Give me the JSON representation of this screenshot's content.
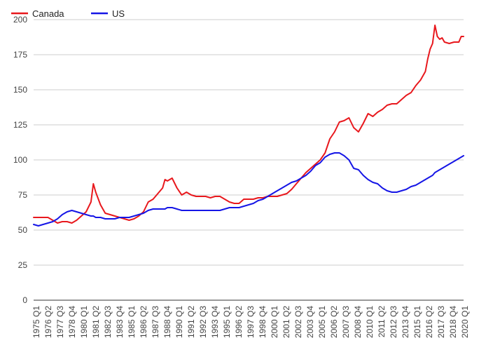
{
  "chart_data": {
    "type": "line",
    "title": "",
    "xlabel": "",
    "ylabel": "",
    "ylim": [
      0,
      200
    ],
    "yticks": [
      0,
      25,
      50,
      75,
      100,
      125,
      150,
      175,
      200
    ],
    "grid": "horizontal",
    "legend_position": "top-left",
    "x_tick_labels": [
      "1975 Q1",
      "1976 Q2",
      "1977 Q3",
      "1978 Q4",
      "1980 Q1",
      "1981 Q2",
      "1982 Q3",
      "1983 Q4",
      "1985 Q1",
      "1986 Q2",
      "1987 Q3",
      "1988 Q4",
      "1990 Q1",
      "1991 Q2",
      "1992 Q3",
      "1993 Q4",
      "1995 Q1",
      "1996 Q2",
      "1997 Q3",
      "1998 Q4",
      "2000 Q1",
      "2001 Q2",
      "2002 Q3",
      "2003 Q4",
      "2005 Q1",
      "2006 Q2",
      "2007 Q3",
      "2008 Q4",
      "2010 Q1",
      "2011 Q2",
      "2012 Q3",
      "2013 Q4",
      "2015 Q1",
      "2016 Q2",
      "2017 Q3",
      "2018 Q4",
      "2020 Q1"
    ],
    "x": [
      1975.0,
      1975.5,
      1976.0,
      1976.5,
      1977.0,
      1977.5,
      1978.0,
      1978.5,
      1979.0,
      1979.5,
      1980.0,
      1980.5,
      1981.0,
      1981.25,
      1981.5,
      1982.0,
      1982.5,
      1983.0,
      1983.5,
      1984.0,
      1984.5,
      1985.0,
      1985.5,
      1986.0,
      1986.5,
      1987.0,
      1987.5,
      1988.0,
      1988.5,
      1988.75,
      1989.0,
      1989.5,
      1990.0,
      1990.5,
      1991.0,
      1991.5,
      1992.0,
      1992.5,
      1993.0,
      1993.5,
      1994.0,
      1994.5,
      1995.0,
      1995.5,
      1996.0,
      1996.5,
      1997.0,
      1997.5,
      1998.0,
      1998.5,
      1999.0,
      1999.5,
      2000.0,
      2000.5,
      2001.0,
      2001.5,
      2002.0,
      2002.5,
      2003.0,
      2003.5,
      2004.0,
      2004.5,
      2005.0,
      2005.5,
      2006.0,
      2006.5,
      2007.0,
      2007.5,
      2008.0,
      2008.5,
      2009.0,
      2009.5,
      2010.0,
      2010.5,
      2011.0,
      2011.5,
      2012.0,
      2012.5,
      2013.0,
      2013.5,
      2014.0,
      2014.5,
      2015.0,
      2015.5,
      2016.0,
      2016.25,
      2016.5,
      2016.75,
      2017.0,
      2017.25,
      2017.5,
      2017.75,
      2018.0,
      2018.5,
      2019.0,
      2019.5,
      2019.75,
      2020.0
    ],
    "series": [
      {
        "name": "Canada",
        "color": "#e8181d",
        "values": [
          59,
          59,
          59,
          59,
          57,
          55,
          56,
          56,
          55,
          57,
          60,
          63,
          70,
          83,
          77,
          68,
          62,
          61,
          60,
          59,
          58,
          57,
          58,
          60,
          63,
          70,
          72,
          76,
          80,
          86,
          85,
          87,
          80,
          75,
          77,
          75,
          74,
          74,
          74,
          73,
          74,
          74,
          72,
          70,
          69,
          69,
          72,
          72,
          72,
          73,
          73,
          74,
          74,
          74,
          75,
          76,
          79,
          83,
          87,
          91,
          94,
          97,
          100,
          105,
          115,
          120,
          127,
          128,
          130,
          123,
          120,
          126,
          133,
          131,
          134,
          136,
          139,
          140,
          140,
          143,
          146,
          148,
          153,
          157,
          163,
          172,
          179,
          183,
          196,
          188,
          186,
          187,
          184,
          183,
          184,
          184,
          188,
          188
        ]
      },
      {
        "name": "US",
        "color": "#1515e6",
        "values": [
          54,
          53,
          54,
          55,
          56,
          58,
          61,
          63,
          64,
          63,
          62,
          61,
          60,
          60,
          59,
          59,
          58,
          58,
          58,
          59,
          59,
          59,
          60,
          61,
          62,
          64,
          65,
          65,
          65,
          65,
          66,
          66,
          65,
          64,
          64,
          64,
          64,
          64,
          64,
          64,
          64,
          64,
          65,
          66,
          66,
          66,
          67,
          68,
          69,
          71,
          72,
          74,
          76,
          78,
          80,
          82,
          84,
          85,
          87,
          89,
          92,
          96,
          98,
          102,
          104,
          105,
          105,
          103,
          100,
          94,
          93,
          89,
          86,
          84,
          83,
          80,
          78,
          77,
          77,
          78,
          79,
          81,
          82,
          84,
          86,
          87,
          88,
          89,
          91,
          92,
          93,
          94,
          95,
          97,
          99,
          101,
          102,
          103
        ]
      }
    ]
  }
}
